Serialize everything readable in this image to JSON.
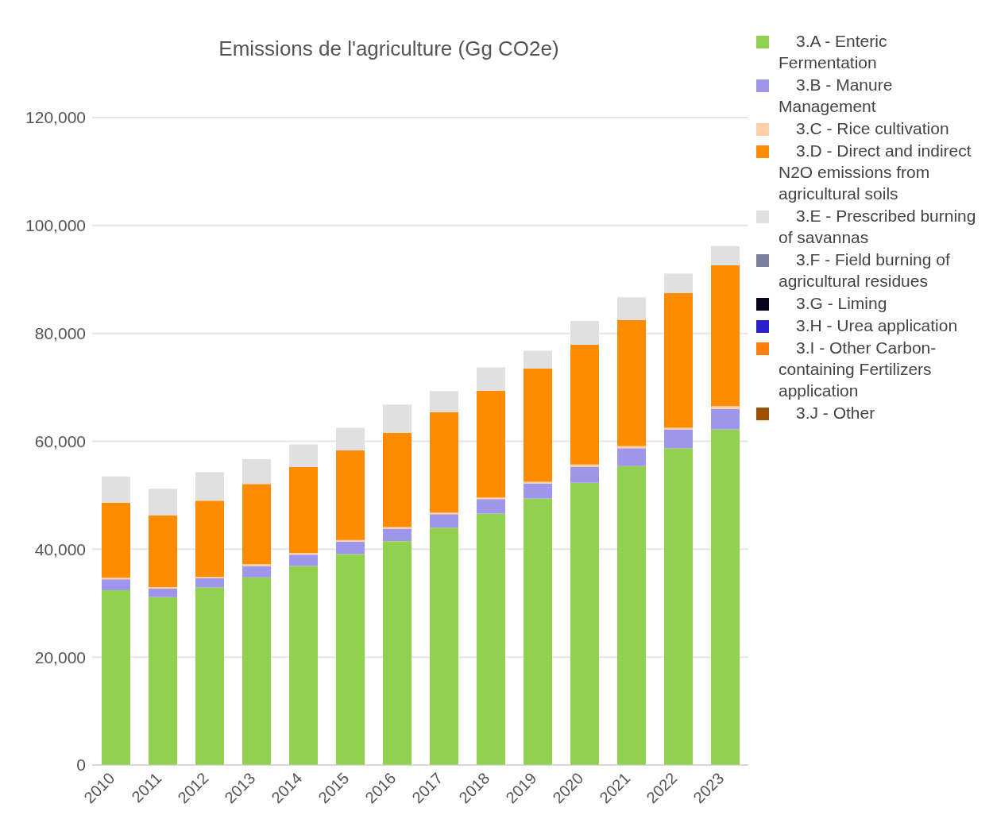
{
  "chart_data": {
    "type": "bar",
    "stacked": true,
    "title": "Emissions de l'agriculture (Gg CO2e)",
    "categories": [
      "2010",
      "2011",
      "2012",
      "2013",
      "2014",
      "2015",
      "2016",
      "2017",
      "2018",
      "2019",
      "2020",
      "2021",
      "2022",
      "2023"
    ],
    "series": [
      {
        "name": "3.A - Enteric Fermentation",
        "color": "#92d050",
        "values": [
          32400,
          31100,
          32900,
          34800,
          36900,
          39100,
          41500,
          44000,
          46600,
          49400,
          52300,
          55400,
          58700,
          62200
        ]
      },
      {
        "name": "3.B - Manure Management",
        "color": "#9e96ea",
        "values": [
          2000,
          1600,
          1700,
          2100,
          2100,
          2300,
          2300,
          2500,
          2700,
          2800,
          3000,
          3300,
          3500,
          3800
        ]
      },
      {
        "name": "3.C - Rice cultivation",
        "color": "#ffd0a8",
        "values": [
          300,
          300,
          300,
          300,
          300,
          300,
          300,
          300,
          300,
          300,
          400,
          400,
          300,
          500
        ]
      },
      {
        "name": "3.D - Direct and indirect N2O emissions from agricultural soils",
        "color": "#ff8c00",
        "values": [
          13900,
          13300,
          14100,
          14900,
          15900,
          16600,
          17500,
          18600,
          19800,
          21000,
          22200,
          23400,
          25000,
          26100
        ]
      },
      {
        "name": "3.E - Prescribed burning of savannas",
        "color": "#e0e0e0",
        "values": [
          4900,
          4900,
          5300,
          4600,
          4200,
          4200,
          5200,
          3900,
          4300,
          3300,
          4400,
          4200,
          3600,
          3600
        ]
      },
      {
        "name": "3.F - Field burning of agricultural residues",
        "color": "#7b7f9e",
        "values": [
          0,
          0,
          0,
          0,
          0,
          0,
          0,
          0,
          0,
          0,
          0,
          0,
          0,
          0
        ]
      },
      {
        "name": "3.G - Liming",
        "color": "#050520",
        "values": [
          0,
          0,
          0,
          0,
          0,
          0,
          0,
          0,
          0,
          0,
          0,
          0,
          0,
          0
        ]
      },
      {
        "name": "3.H - Urea application",
        "color": "#2b1fcf",
        "values": [
          0,
          0,
          0,
          0,
          0,
          0,
          0,
          0,
          0,
          0,
          0,
          0,
          0,
          0
        ]
      },
      {
        "name": "3.I - Other Carbon-containing Fertilizers application",
        "color": "#ff7f0a",
        "values": [
          0,
          0,
          0,
          0,
          0,
          0,
          0,
          0,
          0,
          0,
          0,
          0,
          0,
          0
        ]
      },
      {
        "name": "3.J - Other",
        "color": "#9a5200",
        "values": [
          0,
          0,
          0,
          0,
          0,
          0,
          0,
          0,
          0,
          0,
          0,
          0,
          0,
          0
        ]
      }
    ],
    "ylim": [
      0,
      120000
    ],
    "yticks": [
      0,
      {
        "value": 20000,
        "label": "20,000"
      },
      {
        "value": 40000,
        "label": "40,000"
      },
      {
        "value": 60000,
        "label": "60,000"
      },
      {
        "value": 80000,
        "label": "80,000"
      },
      {
        "value": 100000,
        "label": "100,000"
      },
      {
        "value": 120000,
        "label": "120,000"
      }
    ],
    "grid": "y",
    "legend": "right"
  }
}
